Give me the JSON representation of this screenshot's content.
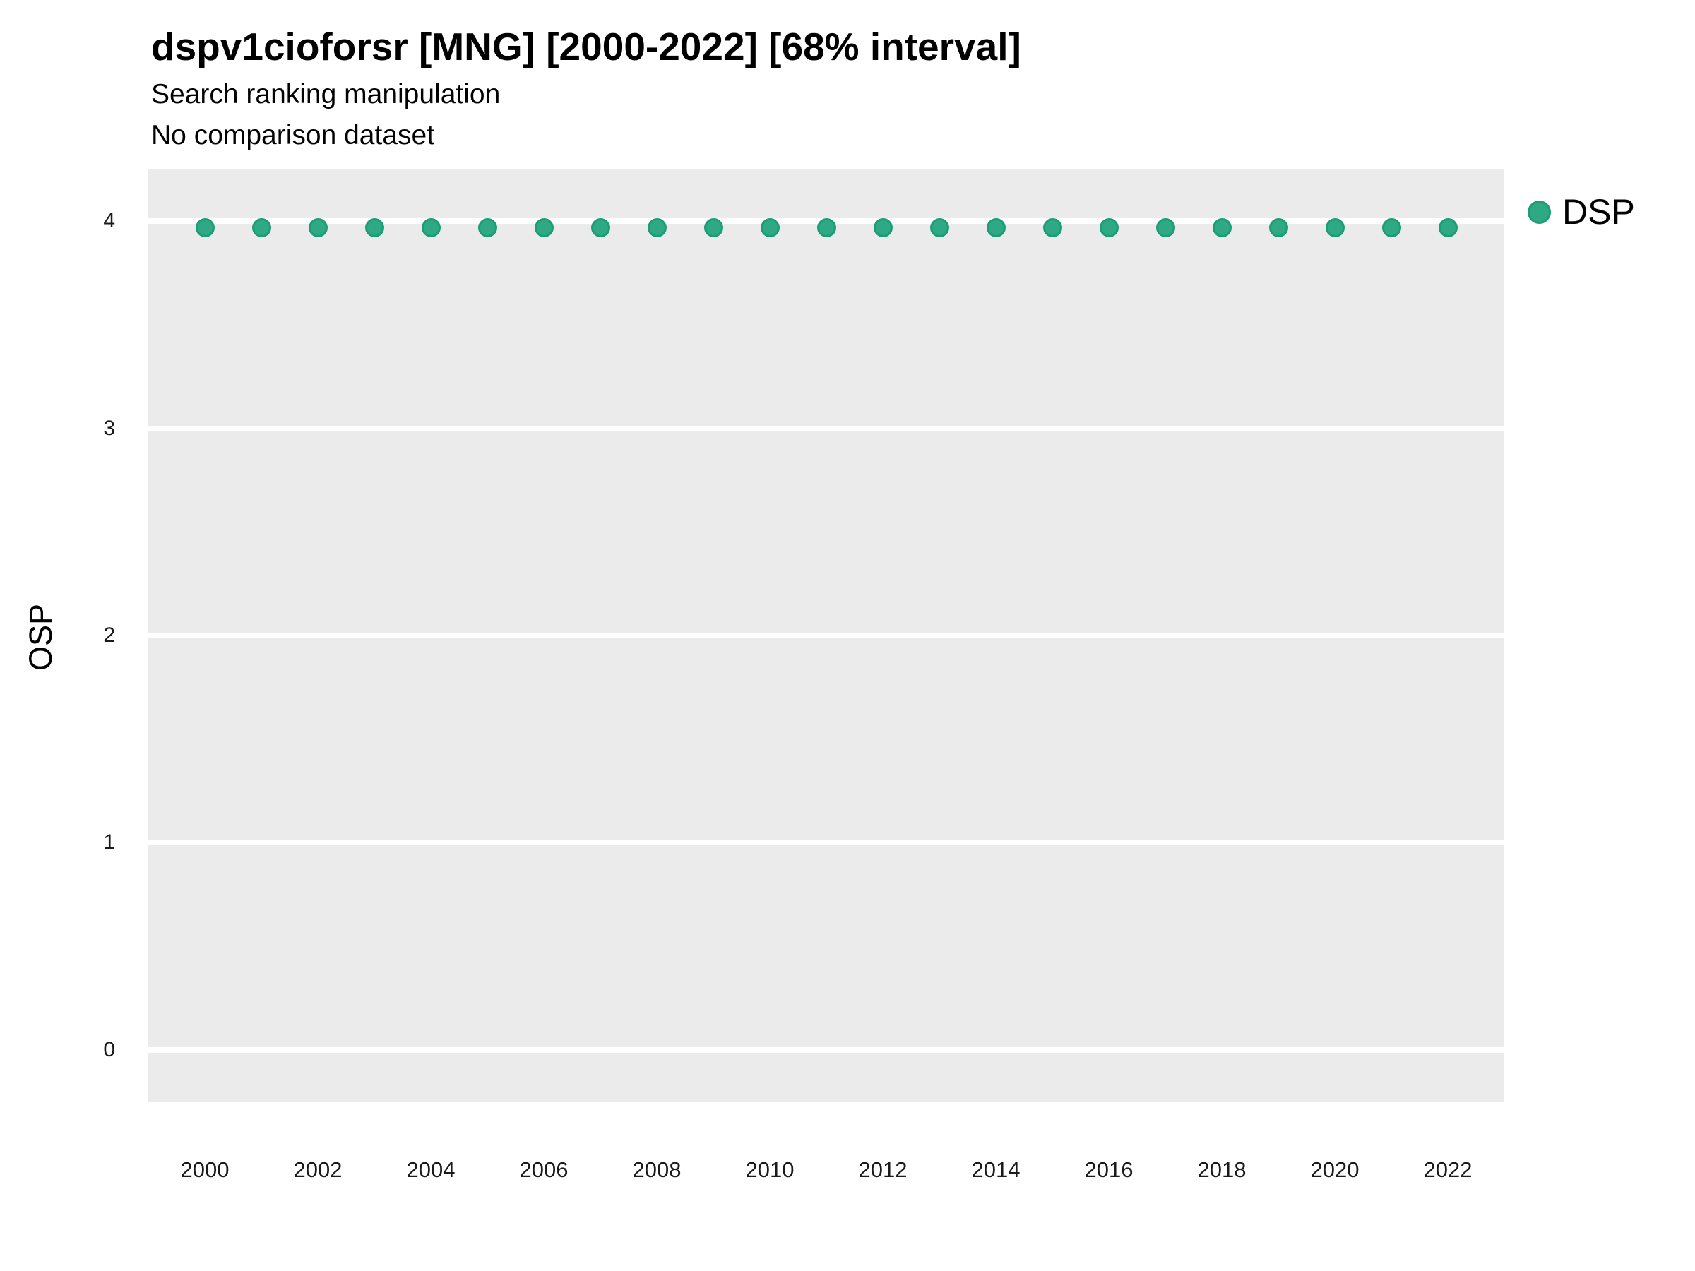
{
  "title": "dspv1cioforsr [MNG] [2000-2022] [68% interval]",
  "subtitle": "Search ranking manipulation",
  "note": "No comparison dataset",
  "colors": {
    "panel_background": "#ebebeb",
    "gridline": "#ffffff",
    "point_fill": "#2fa983",
    "point_stroke": "#1b9e77",
    "text": "#000000",
    "tick_text": "#1a1a1a"
  },
  "legend": {
    "position": "right",
    "items": [
      {
        "label": "DSP",
        "color": "#1b9e77"
      }
    ]
  },
  "chart_data": {
    "type": "scatter",
    "title": "dspv1cioforsr [MNG] [2000-2022] [68% interval]",
    "subtitle": "Search ranking manipulation",
    "note": "No comparison dataset",
    "xlabel": "",
    "ylabel": "OSP",
    "x": [
      2000,
      2001,
      2002,
      2003,
      2004,
      2005,
      2006,
      2007,
      2008,
      2009,
      2010,
      2011,
      2012,
      2013,
      2014,
      2015,
      2016,
      2017,
      2018,
      2019,
      2020,
      2021,
      2022
    ],
    "series": [
      {
        "name": "DSP",
        "values": [
          3.97,
          3.97,
          3.97,
          3.97,
          3.97,
          3.97,
          3.97,
          3.97,
          3.97,
          3.97,
          3.97,
          3.97,
          3.97,
          3.97,
          3.97,
          3.97,
          3.97,
          3.97,
          3.97,
          3.97,
          3.97,
          3.97,
          3.97
        ]
      }
    ],
    "xticks": [
      2000,
      2002,
      2004,
      2006,
      2008,
      2010,
      2012,
      2014,
      2016,
      2018,
      2020,
      2022
    ],
    "yticks": [
      0,
      1,
      2,
      3,
      4
    ],
    "xlim": [
      1999,
      2023
    ],
    "ylim": [
      -0.25,
      4.25
    ],
    "grid": "horizontal-major-only",
    "legend_position": "right"
  }
}
